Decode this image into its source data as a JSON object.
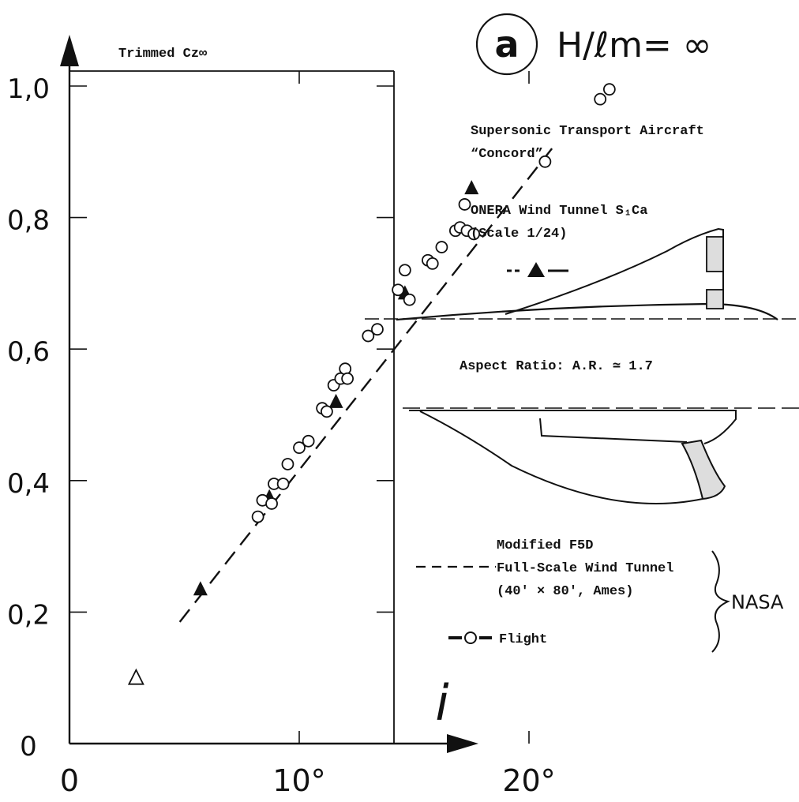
{
  "chart_data": {
    "type": "scatter",
    "title_letter": "a",
    "title_formula": "H/ℓm= ∞",
    "ylabel": "Trimmed Cz∞",
    "xlabel": "i",
    "xlim": [
      0,
      24
    ],
    "ylim": [
      0,
      1.05
    ],
    "x_ticks": [
      {
        "value": 0,
        "label": "0"
      },
      {
        "value": 10,
        "label": "10°"
      },
      {
        "value": 20,
        "label": "20°"
      }
    ],
    "y_ticks": [
      {
        "value": 0,
        "label": "0"
      },
      {
        "value": 0.2,
        "label": "0,2"
      },
      {
        "value": 0.4,
        "label": "0,4"
      },
      {
        "value": 0.6,
        "label": "0,6"
      },
      {
        "value": 0.8,
        "label": "0,8"
      },
      {
        "value": 1.0,
        "label": "1,0"
      }
    ],
    "series": [
      {
        "marker": "filled-triangle",
        "points": [
          [
            5.7,
            0.235
          ],
          [
            8.7,
            0.375
          ],
          [
            11.6,
            0.52
          ],
          [
            14.6,
            0.685
          ],
          [
            17.5,
            0.845
          ]
        ]
      },
      {
        "marker": "open-triangle",
        "points": [
          [
            2.9,
            0.1
          ]
        ]
      },
      {
        "marker": "open-circle",
        "points": [
          [
            8.2,
            0.345
          ],
          [
            8.4,
            0.37
          ],
          [
            8.8,
            0.365
          ],
          [
            8.9,
            0.395
          ],
          [
            9.3,
            0.395
          ],
          [
            9.5,
            0.425
          ],
          [
            10.0,
            0.45
          ],
          [
            10.4,
            0.46
          ],
          [
            11.0,
            0.51
          ],
          [
            11.2,
            0.505
          ],
          [
            11.5,
            0.545
          ],
          [
            11.8,
            0.555
          ],
          [
            12.0,
            0.57
          ],
          [
            12.1,
            0.555
          ],
          [
            13.0,
            0.62
          ],
          [
            13.4,
            0.63
          ],
          [
            14.3,
            0.69
          ],
          [
            14.6,
            0.72
          ],
          [
            14.8,
            0.675
          ],
          [
            15.6,
            0.735
          ],
          [
            15.8,
            0.73
          ],
          [
            16.2,
            0.755
          ],
          [
            16.8,
            0.78
          ],
          [
            17.0,
            0.785
          ],
          [
            17.2,
            0.82
          ],
          [
            17.3,
            0.78
          ],
          [
            17.6,
            0.775
          ],
          [
            20.7,
            0.885
          ],
          [
            23.1,
            0.98
          ],
          [
            23.5,
            0.995
          ]
        ]
      }
    ],
    "fit_line": {
      "style": "dashed",
      "points": [
        [
          4.8,
          0.185
        ],
        [
          21.0,
          0.905
        ]
      ]
    },
    "annotations": {
      "concorde_title_1": "Supersonic Transport Aircraft",
      "concorde_title_2": "“Concord”",
      "tunnel_1": "ONERA Wind Tunnel S₁Ca",
      "tunnel_2": "(Scale 1/24)",
      "aspect_ratio": "Aspect Ratio: A.R. ≃ 1.7",
      "legend_model": "Modified F5D",
      "legend_dash": "Full-Scale Wind Tunnel",
      "legend_dash_sub": "(40′ × 80′, Ames)",
      "legend_flight": "Flight",
      "legend_group": "NASA"
    }
  }
}
